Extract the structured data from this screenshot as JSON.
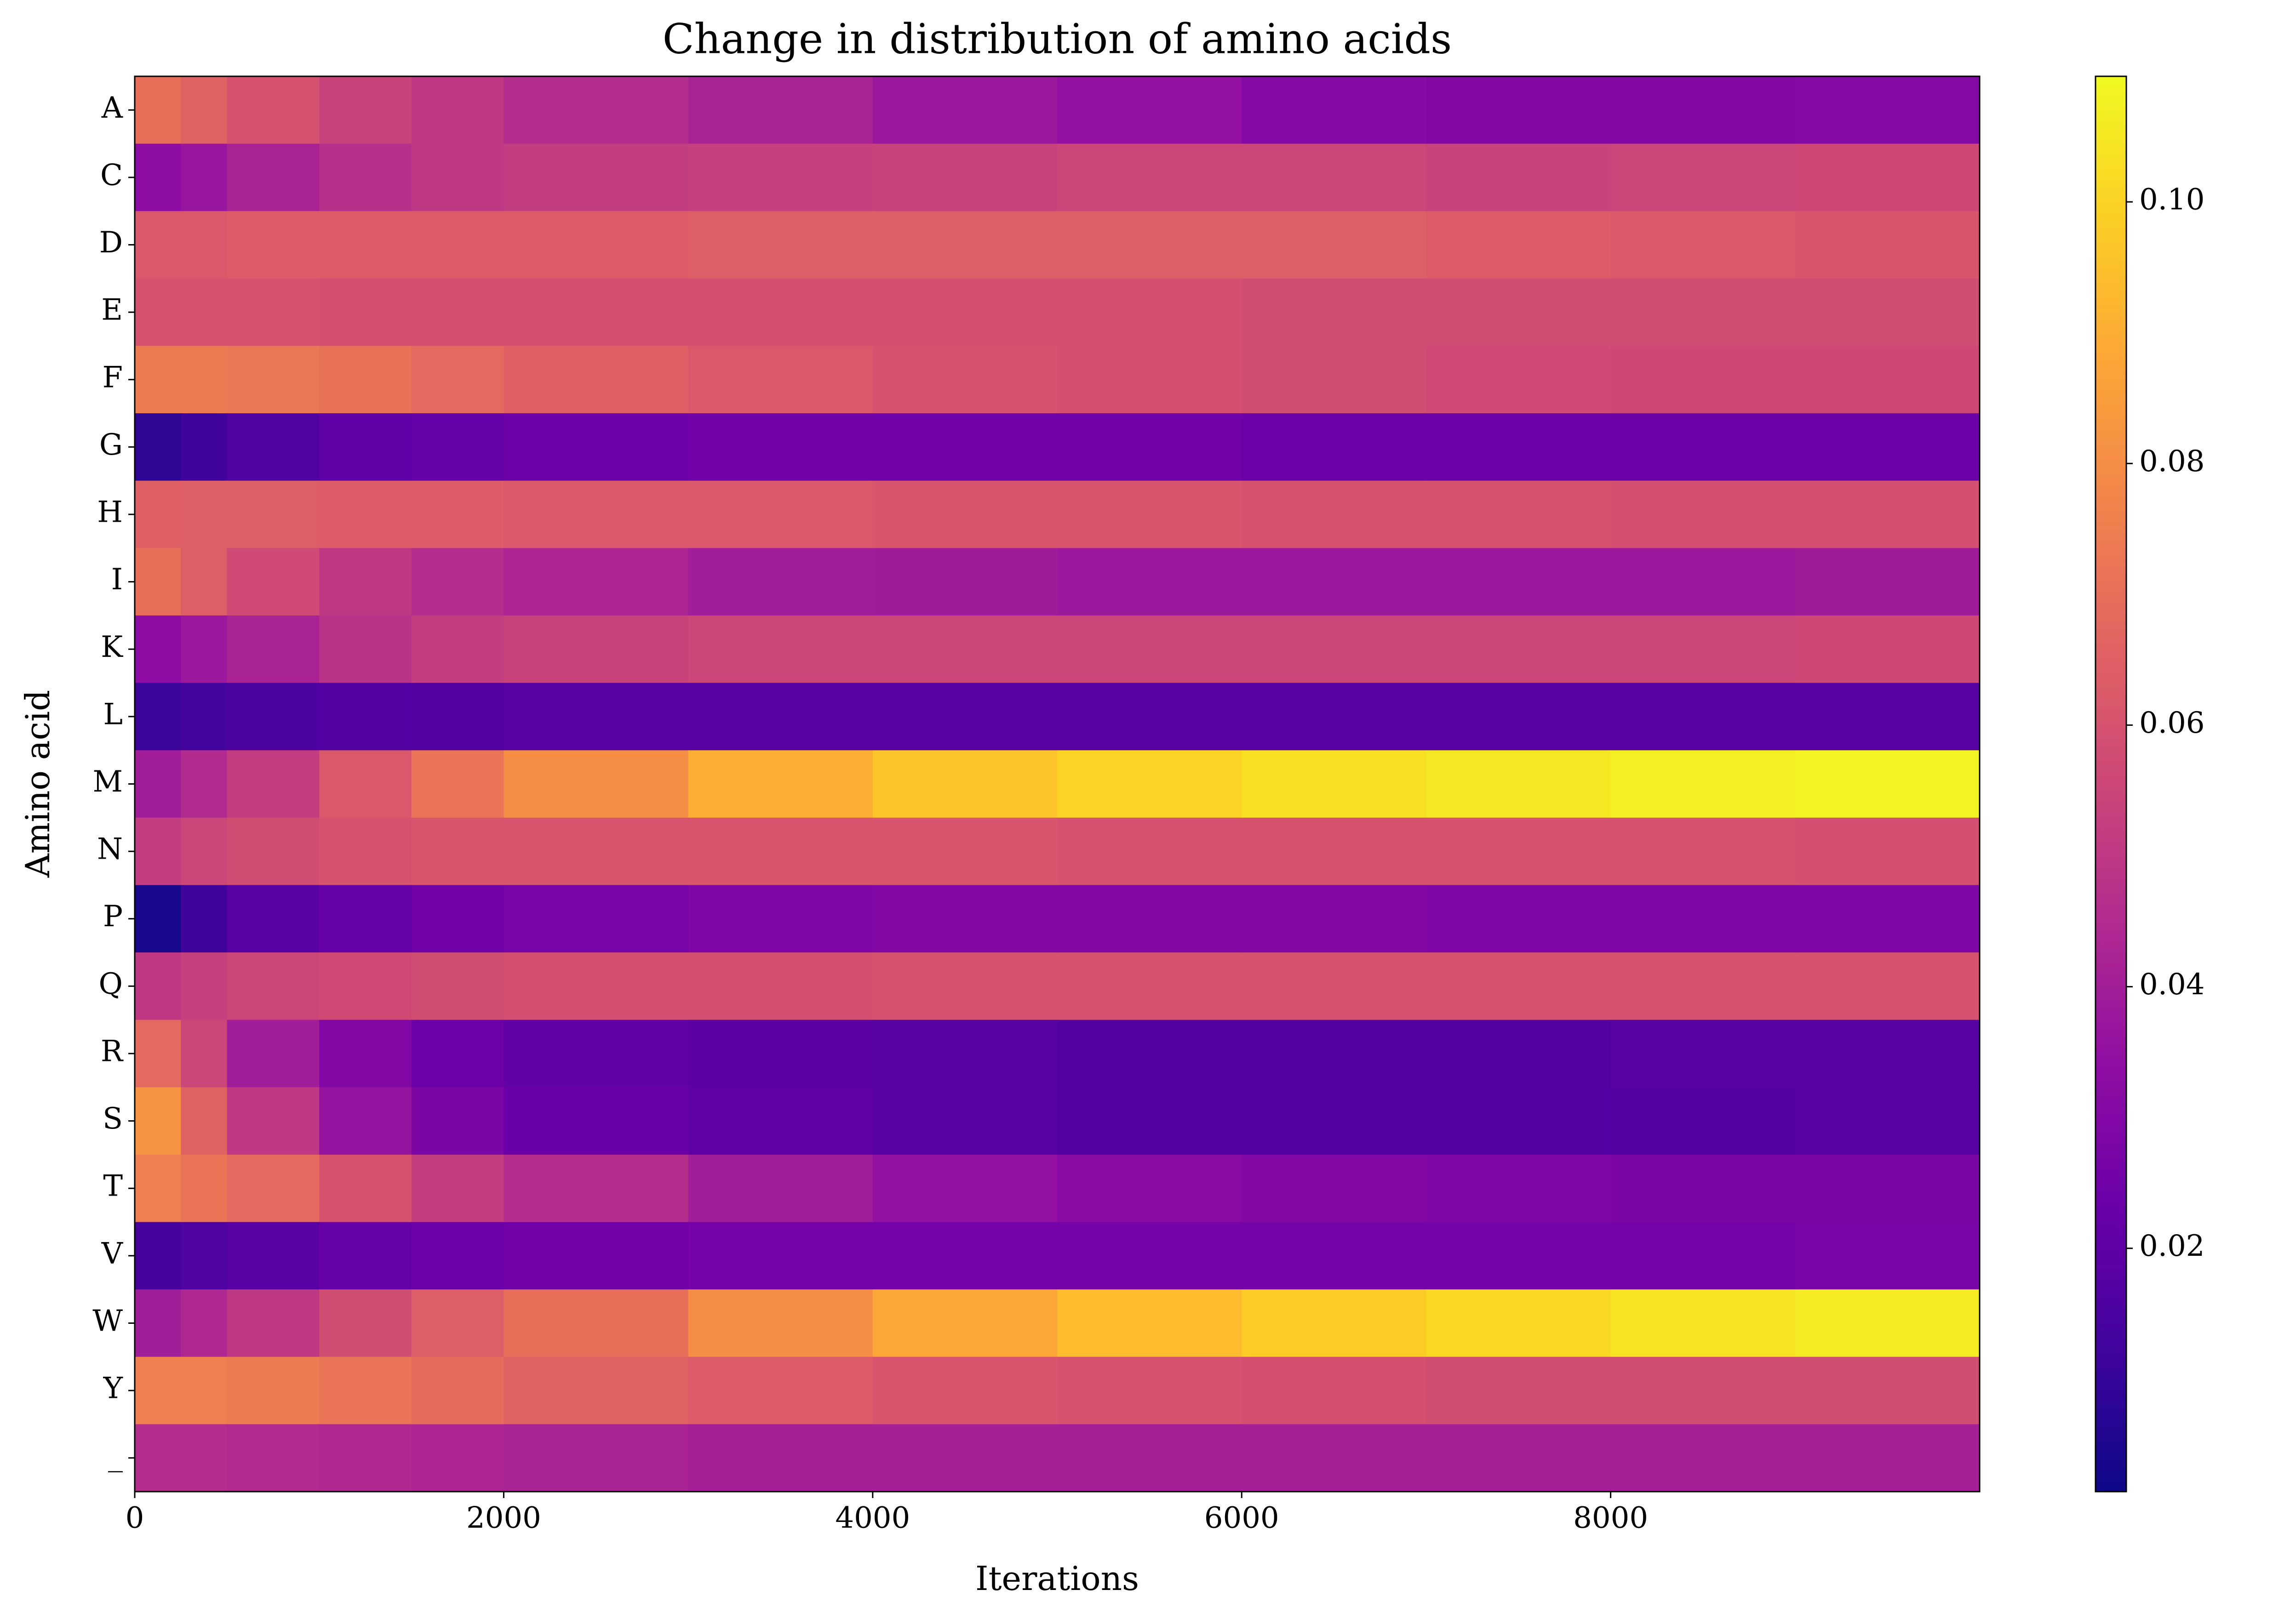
{
  "chart_data": {
    "type": "heatmap",
    "title": "Change in distribution of amino acids",
    "x_label": "Iterations",
    "y_label": "Amino acid",
    "categories": [
      "A",
      "C",
      "D",
      "E",
      "F",
      "G",
      "H",
      "I",
      "K",
      "L",
      "M",
      "N",
      "P",
      "Q",
      "R",
      "S",
      "T",
      "V",
      "W",
      "Y",
      "_"
    ],
    "x": [
      0,
      250,
      500,
      1000,
      1500,
      2000,
      3000,
      4000,
      5000,
      6000,
      7000,
      8000,
      9000
    ],
    "xlim": [
      0,
      10000
    ],
    "xticks": [
      0,
      2000,
      4000,
      6000,
      8000
    ],
    "values": [
      [
        0.07,
        0.066,
        0.06,
        0.054,
        0.05,
        0.046,
        0.042,
        0.038,
        0.035,
        0.031,
        0.03,
        0.03,
        0.031
      ],
      [
        0.033,
        0.037,
        0.042,
        0.047,
        0.05,
        0.052,
        0.053,
        0.054,
        0.055,
        0.055,
        0.054,
        0.055,
        0.056
      ],
      [
        0.062,
        0.062,
        0.063,
        0.063,
        0.063,
        0.063,
        0.064,
        0.064,
        0.064,
        0.064,
        0.063,
        0.062,
        0.061
      ],
      [
        0.06,
        0.06,
        0.06,
        0.059,
        0.059,
        0.059,
        0.059,
        0.059,
        0.059,
        0.058,
        0.058,
        0.058,
        0.058
      ],
      [
        0.074,
        0.074,
        0.073,
        0.071,
        0.068,
        0.065,
        0.062,
        0.06,
        0.059,
        0.058,
        0.057,
        0.056,
        0.056
      ],
      [
        0.008,
        0.012,
        0.016,
        0.02,
        0.022,
        0.024,
        0.025,
        0.025,
        0.025,
        0.024,
        0.024,
        0.024,
        0.024
      ],
      [
        0.065,
        0.064,
        0.064,
        0.063,
        0.063,
        0.062,
        0.062,
        0.061,
        0.061,
        0.06,
        0.06,
        0.059,
        0.059
      ],
      [
        0.07,
        0.064,
        0.057,
        0.05,
        0.046,
        0.043,
        0.04,
        0.039,
        0.038,
        0.038,
        0.038,
        0.038,
        0.039
      ],
      [
        0.034,
        0.038,
        0.042,
        0.048,
        0.052,
        0.054,
        0.055,
        0.055,
        0.055,
        0.055,
        0.055,
        0.055,
        0.056
      ],
      [
        0.011,
        0.013,
        0.015,
        0.017,
        0.017,
        0.018,
        0.018,
        0.018,
        0.018,
        0.018,
        0.018,
        0.018,
        0.018
      ],
      [
        0.04,
        0.045,
        0.052,
        0.062,
        0.072,
        0.08,
        0.09,
        0.096,
        0.1,
        0.103,
        0.105,
        0.107,
        0.108
      ],
      [
        0.052,
        0.055,
        0.058,
        0.06,
        0.061,
        0.061,
        0.061,
        0.061,
        0.06,
        0.06,
        0.06,
        0.06,
        0.059
      ],
      [
        0.004,
        0.012,
        0.018,
        0.022,
        0.025,
        0.027,
        0.029,
        0.03,
        0.03,
        0.03,
        0.029,
        0.029,
        0.029
      ],
      [
        0.05,
        0.053,
        0.055,
        0.057,
        0.058,
        0.059,
        0.059,
        0.06,
        0.06,
        0.06,
        0.06,
        0.06,
        0.06
      ],
      [
        0.068,
        0.055,
        0.04,
        0.03,
        0.024,
        0.021,
        0.019,
        0.018,
        0.017,
        0.017,
        0.017,
        0.018,
        0.018
      ],
      [
        0.082,
        0.066,
        0.05,
        0.036,
        0.028,
        0.023,
        0.02,
        0.018,
        0.017,
        0.017,
        0.017,
        0.017,
        0.018
      ],
      [
        0.075,
        0.072,
        0.068,
        0.06,
        0.052,
        0.046,
        0.04,
        0.035,
        0.032,
        0.03,
        0.029,
        0.028,
        0.028
      ],
      [
        0.014,
        0.016,
        0.018,
        0.022,
        0.024,
        0.025,
        0.026,
        0.026,
        0.026,
        0.026,
        0.026,
        0.026,
        0.027
      ],
      [
        0.04,
        0.044,
        0.05,
        0.058,
        0.064,
        0.07,
        0.08,
        0.088,
        0.094,
        0.098,
        0.101,
        0.104,
        0.106
      ],
      [
        0.075,
        0.075,
        0.074,
        0.072,
        0.069,
        0.066,
        0.063,
        0.061,
        0.06,
        0.059,
        0.058,
        0.058,
        0.058
      ],
      [
        0.046,
        0.046,
        0.045,
        0.044,
        0.043,
        0.042,
        0.041,
        0.041,
        0.041,
        0.041,
        0.041,
        0.041,
        0.041
      ]
    ],
    "colormap": "plasma",
    "clim": [
      0.0014,
      0.1096
    ],
    "cticks": [
      0.02,
      0.04,
      0.06,
      0.08,
      {
        "value": 0.1,
        "label": "0.10"
      }
    ]
  }
}
